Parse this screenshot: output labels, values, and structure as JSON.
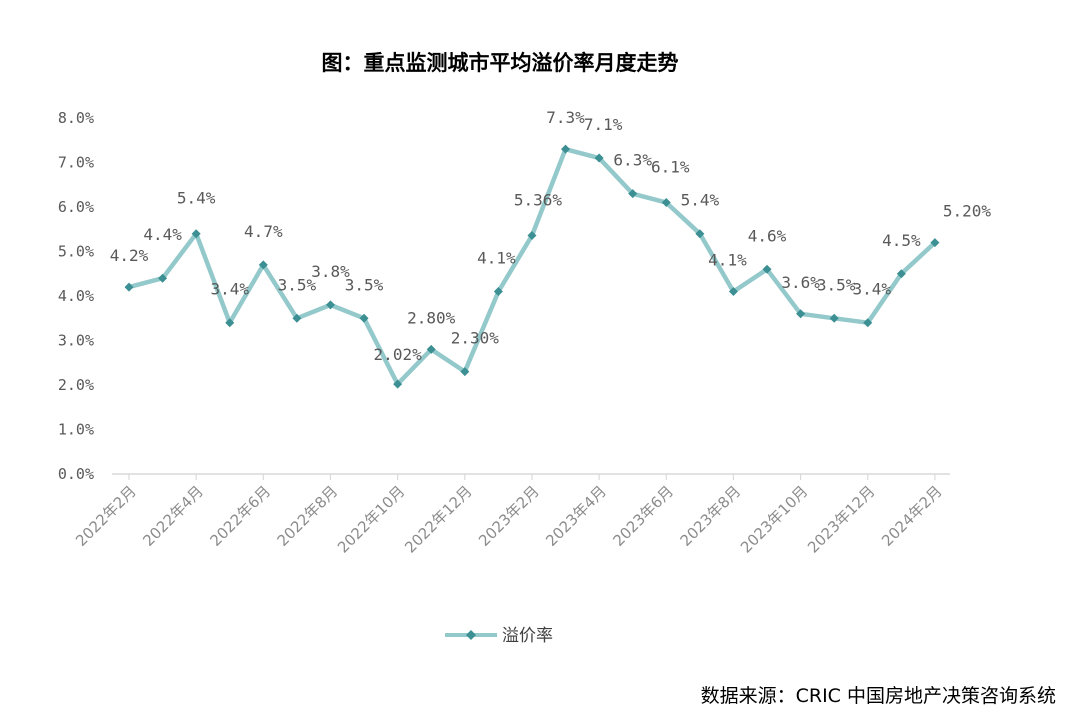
{
  "chart_data": {
    "type": "line",
    "title": "图：重点监测城市平均溢价率月度走势",
    "ylim": [
      0,
      8
    ],
    "yticks": [
      "0.0%",
      "1.0%",
      "2.0%",
      "3.0%",
      "4.0%",
      "5.0%",
      "6.0%",
      "7.0%",
      "8.0%"
    ],
    "x": [
      "2022年2月",
      "2022年3月",
      "2022年4月",
      "2022年5月",
      "2022年6月",
      "2022年7月",
      "2022年8月",
      "2022年9月",
      "2022年10月",
      "2022年11月",
      "2022年12月",
      "2023年1月",
      "2023年2月",
      "2023年3月",
      "2023年4月",
      "2023年5月",
      "2023年6月",
      "2023年7月",
      "2023年8月",
      "2023年9月",
      "2023年10月",
      "2023年11月",
      "2023年12月",
      "2024年1月",
      "2024年2月"
    ],
    "xtick_labels": [
      "2022年2月",
      "2022年4月",
      "2022年6月",
      "2022年8月",
      "2022年10月",
      "2022年12月",
      "2023年2月",
      "2023年4月",
      "2023年6月",
      "2023年8月",
      "2023年10月",
      "2023年12月",
      "2024年2月"
    ],
    "series": [
      {
        "name": "溢价率",
        "color": "#93c9cb",
        "values": [
          4.2,
          4.4,
          5.4,
          3.4,
          4.7,
          3.5,
          3.8,
          3.5,
          2.02,
          2.8,
          2.3,
          4.1,
          5.36,
          7.3,
          7.1,
          6.3,
          6.1,
          5.4,
          4.1,
          4.6,
          3.6,
          3.5,
          3.4,
          4.5,
          5.2
        ],
        "labels": [
          "4.2%",
          "4.4%",
          "5.4%",
          "3.4%",
          "4.7%",
          "3.5%",
          "3.8%",
          "3.5%",
          "2.02%",
          "2.80%",
          "2.30%",
          "4.1%",
          "5.36%",
          "7.3%",
          "7.1%",
          "6.3%",
          "6.1%",
          "5.4%",
          "4.1%",
          "4.6%",
          "3.6%",
          "3.5%",
          "3.4%",
          "4.5%",
          "5.20%"
        ]
      }
    ],
    "legend": "bottom",
    "grid": false
  },
  "source": "数据来源：CRIC 中国房地产决策咨询系统",
  "colors": {
    "line": "#93c9cb",
    "marker": "#3c8f93",
    "axis": "#d9d9d9"
  }
}
